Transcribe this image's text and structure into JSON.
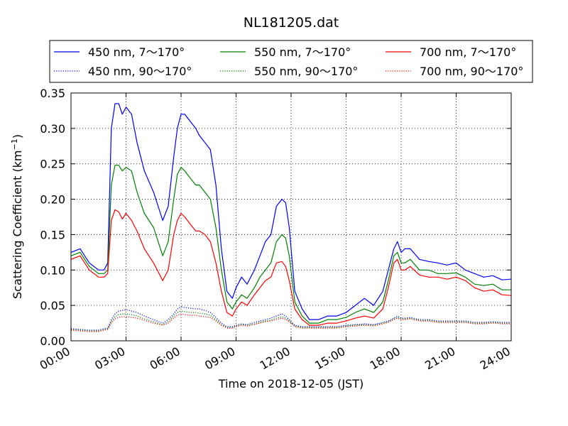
{
  "chart_data": {
    "type": "line",
    "title": "NL181205.dat",
    "xlabel": "Time on 2018-12-05 (JST)",
    "ylabel": "Scattering Coefficient (km",
    "ylabel_sup": "−1",
    "ylabel_close": ")",
    "xlim": [
      0,
      24
    ],
    "ylim": [
      0,
      0.35
    ],
    "grid": true,
    "legend_position": "top",
    "x_ticks": [
      {
        "value": 0,
        "label": "00:00"
      },
      {
        "value": 3,
        "label": "03:00"
      },
      {
        "value": 6,
        "label": "06:00"
      },
      {
        "value": 9,
        "label": "09:00"
      },
      {
        "value": 12,
        "label": "12:00"
      },
      {
        "value": 15,
        "label": "15:00"
      },
      {
        "value": 18,
        "label": "18:00"
      },
      {
        "value": 21,
        "label": "21:00"
      },
      {
        "value": 24,
        "label": "24:00"
      }
    ],
    "y_ticks": [
      {
        "value": 0,
        "label": "0.00"
      },
      {
        "value": 0.05,
        "label": "0.05"
      },
      {
        "value": 0.1,
        "label": "0.10"
      },
      {
        "value": 0.15,
        "label": "0.15"
      },
      {
        "value": 0.2,
        "label": "0.20"
      },
      {
        "value": 0.25,
        "label": "0.25"
      },
      {
        "value": 0.3,
        "label": "0.30"
      },
      {
        "value": 0.35,
        "label": "0.35"
      }
    ],
    "x_hours": [
      0,
      0.5,
      1,
      1.5,
      1.8,
      2.0,
      2.2,
      2.4,
      2.6,
      2.8,
      3.0,
      3.3,
      3.6,
      4.0,
      4.5,
      5.0,
      5.3,
      5.6,
      5.8,
      6.0,
      6.2,
      6.5,
      6.8,
      7.0,
      7.3,
      7.6,
      7.9,
      8.2,
      8.5,
      8.8,
      9.0,
      9.3,
      9.6,
      10.0,
      10.3,
      10.6,
      10.9,
      11.2,
      11.5,
      11.7,
      11.9,
      12.2,
      12.6,
      13.0,
      13.5,
      14.0,
      14.5,
      15.0,
      15.5,
      16.0,
      16.5,
      17.0,
      17.3,
      17.6,
      17.8,
      18.0,
      18.2,
      18.5,
      19.0,
      19.5,
      20.0,
      20.5,
      21.0,
      21.5,
      22.0,
      22.5,
      23.0,
      23.5,
      24.0
    ],
    "series": [
      {
        "name": "450 nm, 7～170°",
        "color": "#0000ff",
        "style": "solid",
        "values": [
          0.125,
          0.13,
          0.11,
          0.1,
          0.1,
          0.11,
          0.3,
          0.335,
          0.335,
          0.32,
          0.33,
          0.32,
          0.28,
          0.24,
          0.21,
          0.17,
          0.19,
          0.26,
          0.3,
          0.32,
          0.32,
          0.31,
          0.3,
          0.29,
          0.28,
          0.27,
          0.22,
          0.13,
          0.07,
          0.06,
          0.075,
          0.09,
          0.08,
          0.1,
          0.12,
          0.14,
          0.15,
          0.19,
          0.2,
          0.195,
          0.16,
          0.07,
          0.045,
          0.03,
          0.03,
          0.035,
          0.035,
          0.04,
          0.05,
          0.06,
          0.05,
          0.07,
          0.1,
          0.13,
          0.14,
          0.125,
          0.13,
          0.13,
          0.115,
          0.112,
          0.11,
          0.107,
          0.11,
          0.1,
          0.095,
          0.09,
          0.092,
          0.086,
          0.087
        ]
      },
      {
        "name": "550 nm, 7～170°",
        "color": "#008000",
        "style": "solid",
        "values": [
          0.12,
          0.125,
          0.105,
          0.095,
          0.095,
          0.1,
          0.22,
          0.248,
          0.248,
          0.24,
          0.245,
          0.24,
          0.21,
          0.18,
          0.16,
          0.12,
          0.14,
          0.2,
          0.235,
          0.245,
          0.24,
          0.23,
          0.22,
          0.22,
          0.21,
          0.2,
          0.16,
          0.1,
          0.055,
          0.045,
          0.055,
          0.065,
          0.06,
          0.075,
          0.09,
          0.1,
          0.11,
          0.14,
          0.15,
          0.145,
          0.12,
          0.055,
          0.035,
          0.025,
          0.025,
          0.03,
          0.03,
          0.033,
          0.04,
          0.045,
          0.04,
          0.055,
          0.085,
          0.12,
          0.125,
          0.11,
          0.11,
          0.115,
          0.1,
          0.1,
          0.095,
          0.095,
          0.096,
          0.09,
          0.08,
          0.078,
          0.08,
          0.072,
          0.072
        ]
      },
      {
        "name": "700 nm, 7～170°",
        "color": "#ff0000",
        "style": "solid",
        "values": [
          0.115,
          0.12,
          0.1,
          0.09,
          0.09,
          0.095,
          0.17,
          0.185,
          0.182,
          0.172,
          0.18,
          0.17,
          0.155,
          0.13,
          0.11,
          0.085,
          0.1,
          0.15,
          0.17,
          0.18,
          0.175,
          0.165,
          0.155,
          0.155,
          0.15,
          0.14,
          0.11,
          0.07,
          0.04,
          0.035,
          0.045,
          0.055,
          0.05,
          0.065,
          0.075,
          0.085,
          0.09,
          0.11,
          0.112,
          0.105,
          0.085,
          0.045,
          0.03,
          0.022,
          0.022,
          0.025,
          0.025,
          0.028,
          0.032,
          0.035,
          0.032,
          0.045,
          0.075,
          0.11,
          0.115,
          0.1,
          0.1,
          0.105,
          0.093,
          0.09,
          0.09,
          0.087,
          0.09,
          0.085,
          0.075,
          0.07,
          0.072,
          0.065,
          0.064
        ]
      },
      {
        "name": "450 nm, 90～170°",
        "color": "#0000ff",
        "style": "dotted",
        "values": [
          0.017,
          0.016,
          0.015,
          0.015,
          0.017,
          0.018,
          0.03,
          0.038,
          0.042,
          0.043,
          0.044,
          0.042,
          0.04,
          0.035,
          0.03,
          0.025,
          0.03,
          0.038,
          0.045,
          0.048,
          0.047,
          0.046,
          0.045,
          0.045,
          0.043,
          0.04,
          0.033,
          0.025,
          0.02,
          0.02,
          0.022,
          0.024,
          0.023,
          0.026,
          0.028,
          0.03,
          0.032,
          0.035,
          0.038,
          0.035,
          0.03,
          0.022,
          0.02,
          0.02,
          0.02,
          0.02,
          0.02,
          0.022,
          0.023,
          0.024,
          0.023,
          0.026,
          0.028,
          0.032,
          0.035,
          0.032,
          0.032,
          0.033,
          0.03,
          0.03,
          0.028,
          0.028,
          0.028,
          0.028,
          0.026,
          0.026,
          0.027,
          0.026,
          0.026
        ]
      },
      {
        "name": "550 nm, 90～170°",
        "color": "#008000",
        "style": "dotted",
        "values": [
          0.016,
          0.015,
          0.014,
          0.014,
          0.016,
          0.017,
          0.027,
          0.034,
          0.037,
          0.038,
          0.038,
          0.037,
          0.035,
          0.031,
          0.027,
          0.023,
          0.027,
          0.035,
          0.04,
          0.042,
          0.041,
          0.04,
          0.04,
          0.039,
          0.038,
          0.036,
          0.03,
          0.023,
          0.019,
          0.019,
          0.021,
          0.023,
          0.022,
          0.024,
          0.026,
          0.028,
          0.029,
          0.032,
          0.034,
          0.032,
          0.028,
          0.021,
          0.019,
          0.019,
          0.019,
          0.019,
          0.019,
          0.021,
          0.022,
          0.023,
          0.022,
          0.025,
          0.027,
          0.031,
          0.033,
          0.031,
          0.031,
          0.032,
          0.029,
          0.029,
          0.027,
          0.027,
          0.027,
          0.027,
          0.025,
          0.025,
          0.026,
          0.025,
          0.025
        ]
      },
      {
        "name": "700 nm, 90～170°",
        "color": "#ff0000",
        "style": "dotted",
        "values": [
          0.015,
          0.014,
          0.013,
          0.013,
          0.015,
          0.016,
          0.025,
          0.031,
          0.033,
          0.034,
          0.034,
          0.033,
          0.032,
          0.029,
          0.025,
          0.022,
          0.025,
          0.032,
          0.036,
          0.038,
          0.037,
          0.036,
          0.036,
          0.035,
          0.034,
          0.033,
          0.028,
          0.022,
          0.018,
          0.018,
          0.02,
          0.022,
          0.021,
          0.023,
          0.025,
          0.027,
          0.028,
          0.03,
          0.032,
          0.03,
          0.027,
          0.02,
          0.018,
          0.018,
          0.018,
          0.018,
          0.018,
          0.02,
          0.021,
          0.022,
          0.021,
          0.024,
          0.026,
          0.03,
          0.032,
          0.03,
          0.03,
          0.031,
          0.028,
          0.028,
          0.026,
          0.026,
          0.026,
          0.026,
          0.024,
          0.024,
          0.025,
          0.024,
          0.024
        ]
      }
    ]
  }
}
